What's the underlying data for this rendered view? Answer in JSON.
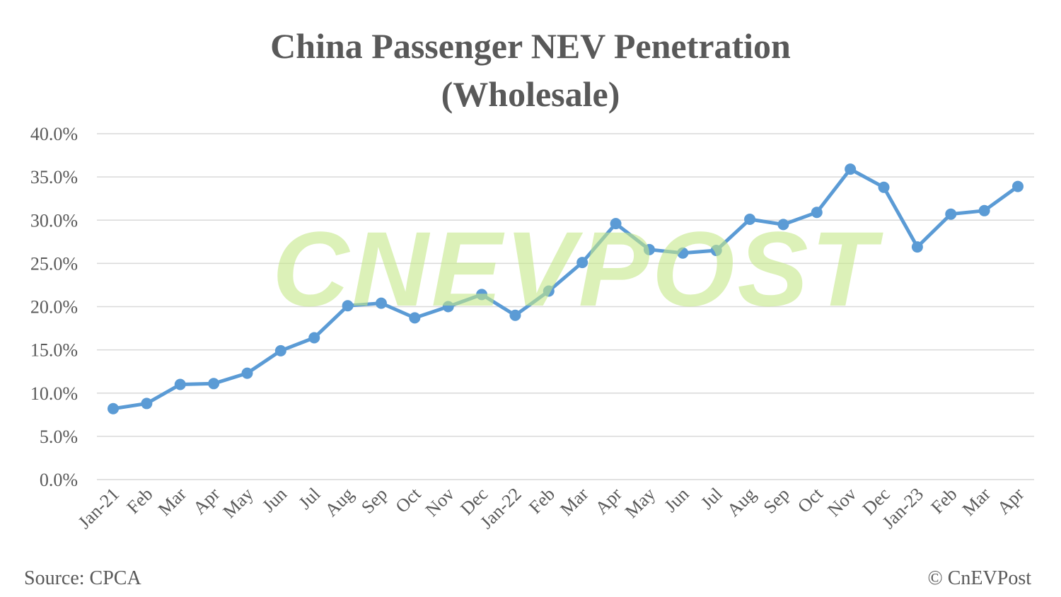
{
  "chart_data": {
    "type": "line",
    "title": "China Passenger NEV Penetration",
    "subtitle": "(Wholesale)",
    "xlabel": "",
    "ylabel": "",
    "categories": [
      "Jan-21",
      "Feb",
      "Mar",
      "Apr",
      "May",
      "Jun",
      "Jul",
      "Aug",
      "Sep",
      "Oct",
      "Nov",
      "Dec",
      "Jan-22",
      "Feb",
      "Mar",
      "Apr",
      "May",
      "Jun",
      "Jul",
      "Aug",
      "Sep",
      "Oct",
      "Nov",
      "Dec",
      "Jan-23",
      "Feb",
      "Mar",
      "Apr"
    ],
    "values": [
      8.2,
      8.8,
      11.0,
      11.1,
      12.3,
      14.9,
      16.4,
      20.1,
      20.4,
      18.7,
      20.0,
      21.4,
      19.0,
      21.8,
      25.1,
      29.6,
      26.6,
      26.2,
      26.5,
      30.1,
      29.5,
      30.9,
      35.9,
      33.8,
      26.9,
      30.7,
      31.1,
      33.9
    ],
    "unit": "%",
    "ylim": [
      0,
      40
    ],
    "yticks": [
      "0.0%",
      "5.0%",
      "10.0%",
      "15.0%",
      "20.0%",
      "25.0%",
      "30.0%",
      "35.0%",
      "40.0%"
    ],
    "grid": true,
    "legend": "none",
    "line_color": "#5b9bd5"
  },
  "footer": {
    "source": "Source: CPCA",
    "copyright": "© CnEVPost"
  },
  "watermark": "CNEVPOST"
}
